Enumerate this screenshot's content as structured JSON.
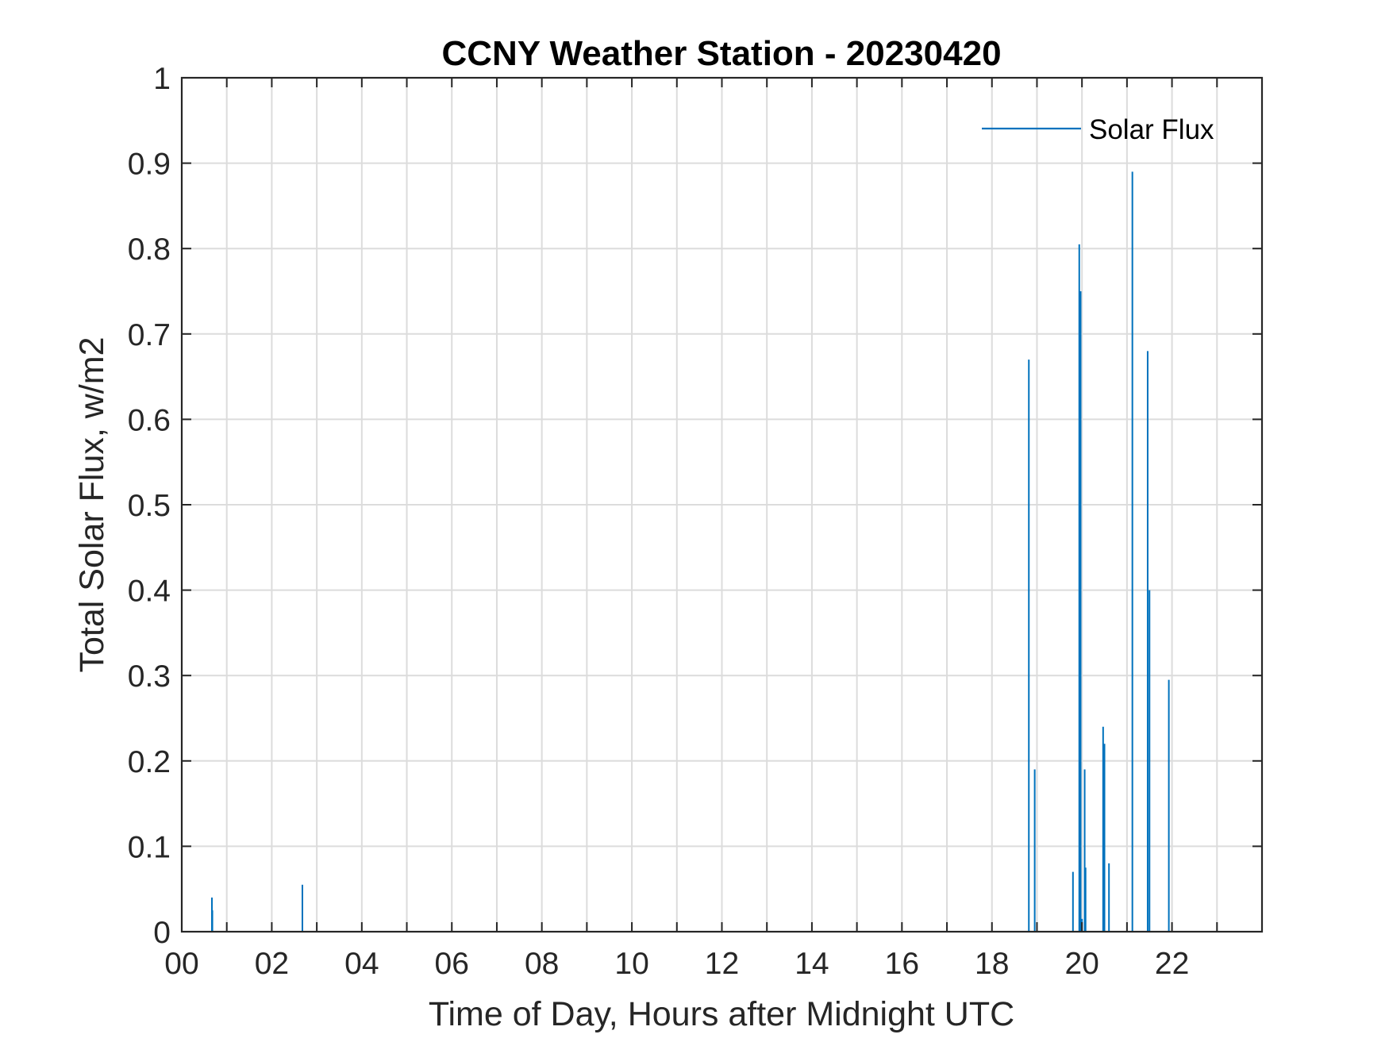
{
  "chart_data": {
    "type": "line",
    "title": "CCNY Weather Station - 20230420",
    "xlabel": "Time of Day, Hours after Midnight UTC",
    "ylabel": "Total Solar Flux, w/m2",
    "xlim": [
      0,
      24
    ],
    "ylim": [
      0,
      1
    ],
    "x_ticks": [
      0,
      2,
      4,
      6,
      8,
      10,
      12,
      14,
      16,
      18,
      20,
      22
    ],
    "x_tick_labels": [
      "00",
      "02",
      "04",
      "06",
      "08",
      "10",
      "12",
      "14",
      "16",
      "18",
      "20",
      "22"
    ],
    "x_minor_ticks": [
      1,
      3,
      5,
      7,
      9,
      11,
      13,
      15,
      17,
      19,
      21,
      23
    ],
    "y_ticks": [
      0,
      0.1,
      0.2,
      0.3,
      0.4,
      0.5,
      0.6,
      0.7,
      0.8,
      0.9,
      1
    ],
    "y_tick_labels": [
      "0",
      "0.1",
      "0.2",
      "0.3",
      "0.4",
      "0.5",
      "0.6",
      "0.7",
      "0.8",
      "0.9",
      "1"
    ],
    "grid": true,
    "legend_position": "top-right",
    "series": [
      {
        "name": "Solar Flux",
        "color": "#0072BD",
        "points": [
          {
            "x": 0.67,
            "y": 0.04
          },
          {
            "x": 0.68,
            "y": 0.025
          },
          {
            "x": 2.68,
            "y": 0.055
          },
          {
            "x": 18.82,
            "y": 0.67
          },
          {
            "x": 18.95,
            "y": 0.19
          },
          {
            "x": 19.8,
            "y": 0.07
          },
          {
            "x": 19.94,
            "y": 0.805
          },
          {
            "x": 19.97,
            "y": 0.75
          },
          {
            "x": 20.0,
            "y": 0.015
          },
          {
            "x": 20.06,
            "y": 0.19
          },
          {
            "x": 20.08,
            "y": 0.075
          },
          {
            "x": 20.47,
            "y": 0.24
          },
          {
            "x": 20.5,
            "y": 0.22
          },
          {
            "x": 20.6,
            "y": 0.08
          },
          {
            "x": 21.12,
            "y": 0.89
          },
          {
            "x": 21.46,
            "y": 0.68
          },
          {
            "x": 21.5,
            "y": 0.4
          },
          {
            "x": 21.93,
            "y": 0.295
          }
        ]
      }
    ]
  }
}
